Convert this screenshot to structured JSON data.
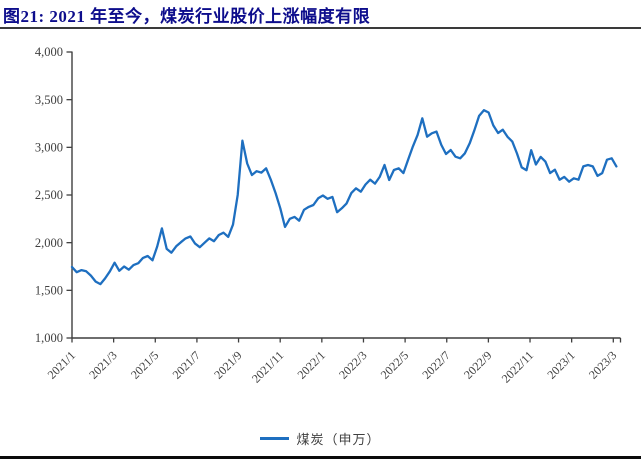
{
  "title": "图21:  2021 年至今，煤炭行业股价上涨幅度有限",
  "legend": {
    "label": "煤炭（申万）"
  },
  "colors": {
    "title_navy": "#0d0d8c",
    "line_blue": "#1e6fc0",
    "axis_gray": "#3f3f3f",
    "tick_label_gray": "#404040"
  },
  "chart_data": {
    "type": "line",
    "title": "",
    "xlabel": "",
    "ylabel": "",
    "grid": false,
    "legend_position": "bottom",
    "x_axis": {
      "ticks": [
        "2021/1",
        "2021/3",
        "2021/5",
        "2021/7",
        "2021/9",
        "2021/11",
        "2022/1",
        "2022/3",
        "2022/5",
        "2022/7",
        "2022/9",
        "2022/11",
        "2023/1",
        "2023/3"
      ],
      "tick_interval_months": 2,
      "total_months": 26.15
    },
    "y_axis": {
      "min": 1000,
      "max": 4000,
      "ticks": [
        {
          "v": 4000,
          "label": "4,000"
        },
        {
          "v": 3500,
          "label": "3,500"
        },
        {
          "v": 3000,
          "label": "3,000"
        },
        {
          "v": 2500,
          "label": "2,500"
        },
        {
          "v": 2000,
          "label": "2,000"
        },
        {
          "v": 1500,
          "label": "1,500"
        },
        {
          "v": 1000,
          "label": "1,000"
        }
      ]
    },
    "series": [
      {
        "name": "煤炭（申万）",
        "color": "#1e6fc0",
        "frequency": "weekly",
        "values": [
          1745,
          1690,
          1712,
          1700,
          1655,
          1592,
          1565,
          1625,
          1700,
          1790,
          1705,
          1750,
          1716,
          1765,
          1785,
          1840,
          1860,
          1815,
          1960,
          2150,
          1935,
          1895,
          1962,
          2005,
          2045,
          2065,
          1990,
          1952,
          2000,
          2045,
          2015,
          2080,
          2105,
          2060,
          2190,
          2500,
          3070,
          2830,
          2710,
          2750,
          2735,
          2780,
          2660,
          2520,
          2360,
          2165,
          2250,
          2270,
          2230,
          2345,
          2375,
          2395,
          2465,
          2495,
          2460,
          2480,
          2320,
          2360,
          2412,
          2520,
          2570,
          2535,
          2610,
          2660,
          2620,
          2690,
          2815,
          2657,
          2762,
          2780,
          2730,
          2870,
          3010,
          3130,
          3305,
          3112,
          3147,
          3165,
          3025,
          2930,
          2972,
          2902,
          2885,
          2937,
          3042,
          3180,
          3330,
          3390,
          3365,
          3230,
          3150,
          3185,
          3110,
          3060,
          2935,
          2790,
          2760,
          2970,
          2820,
          2900,
          2850,
          2730,
          2765,
          2660,
          2690,
          2640,
          2675,
          2660,
          2800,
          2815,
          2800,
          2700,
          2730,
          2870,
          2885,
          2800
        ]
      }
    ]
  }
}
